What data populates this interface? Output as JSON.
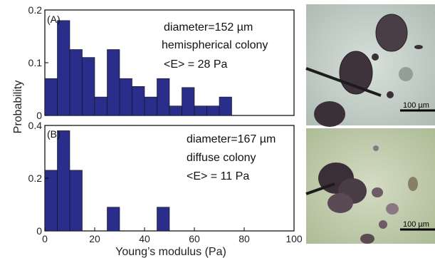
{
  "chart_data": [
    {
      "type": "bar",
      "panel_label": "(A)",
      "bin_width": 5,
      "bin_starts": [
        0,
        5,
        10,
        15,
        20,
        25,
        30,
        35,
        40,
        45,
        50,
        55,
        60,
        65,
        70,
        75
      ],
      "values": [
        0.07,
        0.18,
        0.125,
        0.11,
        0.035,
        0.125,
        0.07,
        0.055,
        0.035,
        0.07,
        0.018,
        0.053,
        0.018,
        0.018,
        0.035,
        0
      ],
      "ylim": [
        0,
        0.2
      ],
      "yticks": [
        "0",
        "0.1",
        "0.2"
      ],
      "xlim": [
        0,
        100
      ],
      "annotations": [
        "diameter=152 µm",
        "hemispherical colony",
        "<E> = 28 Pa"
      ],
      "bar_color": "#2a2e8a"
    },
    {
      "type": "bar",
      "panel_label": "(B)",
      "bin_width": 5,
      "bin_starts": [
        0,
        5,
        10,
        15,
        20,
        25,
        30,
        35,
        40,
        45
      ],
      "values": [
        0.23,
        0.38,
        0.23,
        0,
        0,
        0.09,
        0,
        0,
        0,
        0.09
      ],
      "ylim": [
        0,
        0.4
      ],
      "yticks": [
        "0",
        "0.2",
        "0.4"
      ],
      "xlim": [
        0,
        100
      ],
      "xticks": [
        "0",
        "20",
        "40",
        "60",
        "80",
        "100"
      ],
      "annotations": [
        "diameter=167 µm",
        "diffuse colony",
        "<E> = 11 Pa"
      ],
      "bar_color": "#2a2e8a"
    }
  ],
  "xlabel": "Young’s modulus (Pa)",
  "ylabel": "Probability",
  "images": [
    {
      "scale_bar_label": "100 µm",
      "tint": "#bcc9c1"
    },
    {
      "scale_bar_label": "100 µm",
      "tint": "#bccca8"
    }
  ]
}
